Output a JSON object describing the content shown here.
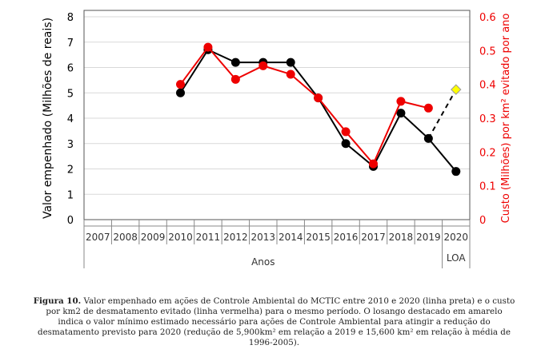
{
  "chart_data": {
    "type": "line",
    "categories": [
      "2007",
      "2008",
      "2009",
      "2010",
      "2011",
      "2012",
      "2013",
      "2014",
      "2015",
      "2016",
      "2017",
      "2018",
      "2019",
      "2020"
    ],
    "xlabel": "Anos",
    "extra_category_label": "LOA",
    "ylabel_left": "Valor empenhado (Milhões de reais)",
    "ylabel_right": "Custo (Milhões) por km² evitado por ano",
    "ylim_left": [
      0,
      8
    ],
    "ylim_right": [
      0,
      0.6
    ],
    "yticks_left": [
      "0",
      "1",
      "2",
      "3",
      "4",
      "5",
      "6",
      "7",
      "8"
    ],
    "yticks_right": [
      "0",
      "0.1",
      "0.2",
      "0.3",
      "0.4",
      "0.5",
      "0.6"
    ],
    "grid": true,
    "series": [
      {
        "axis": "left",
        "color": "#000000",
        "values": [
          null,
          null,
          null,
          5.0,
          6.7,
          6.2,
          6.2,
          6.2,
          4.8,
          3.0,
          2.1,
          4.2,
          3.2,
          1.9
        ]
      },
      {
        "axis": "right",
        "color": "#ee0000",
        "values": [
          null,
          null,
          null,
          0.4,
          0.51,
          0.415,
          0.455,
          0.43,
          0.36,
          0.26,
          0.165,
          0.35,
          0.33,
          null
        ]
      }
    ],
    "projection": {
      "axis": "left",
      "from": "2019",
      "from_value": 3.2,
      "to": "2020",
      "value": 5.13,
      "color": "#ffff00",
      "marker": "diamond",
      "line": "dashed"
    }
  },
  "caption": {
    "label": "Figura 10.",
    "text": "Valor empenhado em ações de Controle Ambiental do MCTIC entre 2010 e 2020 (linha preta) e o custo por km2 de desmatamento evitado (linha vermelha) para o mesmo período. O losango destacado em amarelo indica o valor mínimo estimado necessário para ações de Controle Ambiental para atingir a redução do desmatamento previsto para 2020 (redução de 5,900km² em relação a 2019 e 15,600 km² em relação à média de 1996-2005)."
  }
}
